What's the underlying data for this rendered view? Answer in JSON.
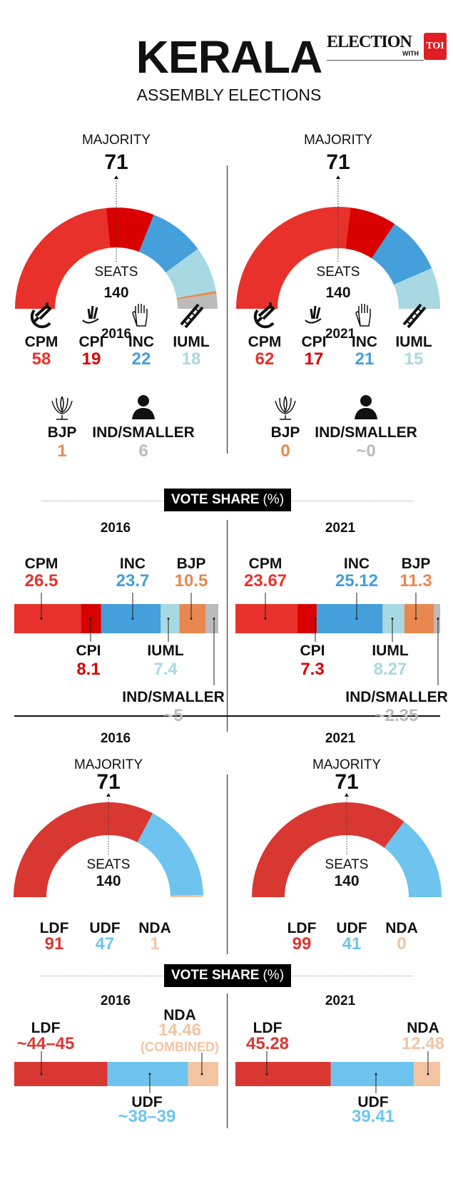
{
  "header": {
    "title": "KERALA",
    "subtitle": "ASSEMBLY ELECTIONS",
    "logo": {
      "text": "ELECTION",
      "with": "WITH",
      "brand": "TOI"
    }
  },
  "vote_share_heading": {
    "label": "VOTE SHARE",
    "unit": "(%)"
  },
  "chart_data": [
    {
      "type": "pie",
      "style": "half-donut",
      "title": "2016",
      "center_label": "SEATS",
      "total": "140",
      "majority_label": "MAJORITY",
      "majority": "71",
      "categories": [
        "CPM",
        "CPI",
        "INC",
        "IUML",
        "BJP",
        "IND/SMALLER"
      ],
      "values": [
        58,
        19,
        22,
        18,
        1,
        6
      ],
      "value_labels": [
        "58",
        "19",
        "22",
        "18",
        "1",
        "6"
      ],
      "icons": [
        "hammer-sickle-icon",
        "corn-sickle-icon",
        "hand-icon",
        "ladder-icon",
        "lotus-icon",
        "person-icon"
      ],
      "colors": [
        "#e8312a",
        "#d90000",
        "#449fdb",
        "#a8d8e2",
        "#e8884f",
        "#bbbbbb"
      ]
    },
    {
      "type": "pie",
      "style": "half-donut",
      "title": "2021",
      "center_label": "SEATS",
      "total": "140",
      "majority_label": "MAJORITY",
      "majority": "71",
      "categories": [
        "CPM",
        "CPI",
        "INC",
        "IUML",
        "BJP",
        "IND/SMALLER"
      ],
      "values": [
        62,
        17,
        21,
        15,
        0,
        0
      ],
      "value_labels": [
        "62",
        "17",
        "21",
        "15",
        "0",
        "~0"
      ],
      "icons": [
        "hammer-sickle-icon",
        "corn-sickle-icon",
        "hand-icon",
        "ladder-icon",
        "lotus-icon",
        "person-icon"
      ],
      "colors": [
        "#e8312a",
        "#d90000",
        "#449fdb",
        "#a8d8e2",
        "#e8884f",
        "#bbbbbb"
      ]
    },
    {
      "type": "bar",
      "style": "stacked-horizontal",
      "title": "2016",
      "categories": [
        "CPM",
        "CPI",
        "INC",
        "IUML",
        "BJP",
        "IND/SMALLER"
      ],
      "values": [
        26.5,
        8.1,
        23.7,
        7.4,
        10.5,
        5
      ],
      "value_labels": [
        "26.5",
        "8.1",
        "23.7",
        "7.4",
        "10.5",
        "~5"
      ],
      "colors": [
        "#e8312a",
        "#d90000",
        "#449fdb",
        "#a8d8e2",
        "#e8884f",
        "#bbbbbb"
      ]
    },
    {
      "type": "bar",
      "style": "stacked-horizontal",
      "title": "2021",
      "categories": [
        "CPM",
        "CPI",
        "INC",
        "IUML",
        "BJP",
        "IND/SMALLER"
      ],
      "values": [
        23.67,
        7.3,
        25.12,
        8.27,
        11.3,
        2.35
      ],
      "value_labels": [
        "23.67",
        "7.3",
        "25.12",
        "8.27",
        "11.3",
        "~2.35"
      ],
      "colors": [
        "#e8312a",
        "#d90000",
        "#449fdb",
        "#a8d8e2",
        "#e8884f",
        "#bbbbbb"
      ]
    },
    {
      "type": "pie",
      "style": "half-donut",
      "title": "2016",
      "center_label": "SEATS",
      "total": "140",
      "majority_label": "MAJORITY",
      "majority": "71",
      "categories": [
        "LDF",
        "UDF",
        "NDA"
      ],
      "values": [
        91,
        47,
        1
      ],
      "value_labels": [
        "91",
        "47",
        "1"
      ],
      "colors": [
        "#d93732",
        "#6ec4ef",
        "#f3c4a2"
      ]
    },
    {
      "type": "pie",
      "style": "half-donut",
      "title": "2021",
      "center_label": "SEATS",
      "total": "140",
      "majority_label": "MAJORITY",
      "majority": "71",
      "categories": [
        "LDF",
        "UDF",
        "NDA"
      ],
      "values": [
        99,
        41,
        0
      ],
      "value_labels": [
        "99",
        "41",
        "0"
      ],
      "colors": [
        "#d93732",
        "#6ec4ef",
        "#f3c4a2"
      ]
    },
    {
      "type": "bar",
      "style": "stacked-horizontal",
      "title": "2016",
      "categories": [
        "LDF",
        "UDF",
        "NDA"
      ],
      "ranges": [
        [
          44,
          45
        ],
        [
          38,
          39
        ],
        [
          14.46,
          14.46
        ]
      ],
      "value_labels": [
        "~44–45",
        "~38–39",
        "14.46"
      ],
      "notes": [
        "",
        "",
        "(COMBINED)"
      ],
      "colors": [
        "#d93732",
        "#6ec4ef",
        "#f3c4a2"
      ]
    },
    {
      "type": "bar",
      "style": "stacked-horizontal",
      "title": "2021",
      "categories": [
        "LDF",
        "UDF",
        "NDA"
      ],
      "values": [
        45.28,
        39.41,
        12.48
      ],
      "value_labels": [
        "45.28",
        "39.41",
        "12.48"
      ],
      "colors": [
        "#d93732",
        "#6ec4ef",
        "#f3c4a2"
      ]
    }
  ]
}
